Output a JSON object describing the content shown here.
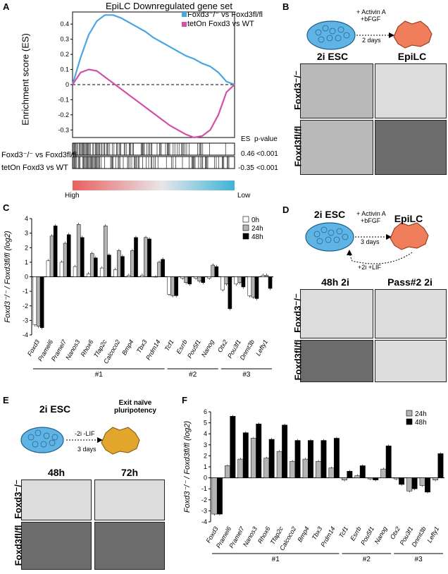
{
  "panels": [
    "A",
    "B",
    "C",
    "D",
    "E",
    "F"
  ],
  "panel_a": {
    "title": "EpiLC Downregulated gene set",
    "legend": [
      {
        "label": "Foxd3⁻/⁻ vs Foxd3fl/fl",
        "color": "#4aa6e0"
      },
      {
        "label": "tetOn Foxd3 vs WT",
        "color": "#d44fa6"
      }
    ],
    "ylabel": "Enrichment score (ES)",
    "yticks": [
      "0.4",
      "0.3",
      "0.2",
      "0.1",
      "0",
      "-0.1",
      "-0.2",
      "-0.3"
    ],
    "es_header": "ES",
    "pvalue_header": "p-value",
    "rows": [
      {
        "label": "Foxd3⁻/⁻ vs Foxd3fl/fl",
        "es": "0.46",
        "p": "<0.001"
      },
      {
        "label": "tetOn Foxd3 vs WT",
        "es": "-0.35",
        "p": "<0.001"
      }
    ],
    "high": "High",
    "low": "Low"
  },
  "panel_b": {
    "scheme_left": "2i ESC",
    "scheme_right": "EpiLC",
    "arrow_text": [
      "+ Activin A",
      "+bFGF",
      "2 days"
    ],
    "row_labels": [
      "Foxd3⁻/⁻",
      "Foxd3fl/fl"
    ]
  },
  "panel_d": {
    "scheme_left": "2i ESC",
    "scheme_right": "EpiLC",
    "arrow_text": [
      "+ Activin A",
      "+bFGF",
      "3 days"
    ],
    "back_text": "+2i +LIF",
    "col_labels": [
      "48h 2i",
      "Pass#2 2i"
    ],
    "row_labels": [
      "Foxd3⁻/⁻",
      "Foxd3fl/fl"
    ]
  },
  "panel_e": {
    "scheme_left": "2i ESC",
    "scheme_right": "Exit naïve pluripotency",
    "arrow_text": [
      "-2i -LIF",
      "3 days"
    ],
    "col_labels": [
      "48h",
      "72h"
    ],
    "row_labels": [
      "Foxd3⁻/⁻",
      "Foxd3fl/fl"
    ]
  },
  "chart_data": [
    {
      "panel": "A",
      "type": "line",
      "title": "EpiLC Downregulated gene set",
      "ylabel": "Enrichment score (ES)",
      "ylim": [
        -0.35,
        0.48
      ],
      "x": [
        0,
        0.05,
        0.1,
        0.15,
        0.2,
        0.25,
        0.3,
        0.35,
        0.4,
        0.45,
        0.5,
        0.55,
        0.6,
        0.65,
        0.7,
        0.75,
        0.8,
        0.85,
        0.9,
        0.95,
        1
      ],
      "series": [
        {
          "name": "Foxd3⁻/⁻ vs Foxd3fl/fl",
          "color": "#4aa6e0",
          "values": [
            0,
            0.18,
            0.33,
            0.42,
            0.46,
            0.46,
            0.44,
            0.41,
            0.38,
            0.35,
            0.31,
            0.28,
            0.25,
            0.22,
            0.19,
            0.17,
            0.14,
            0.12,
            0.08,
            0.02,
            0
          ]
        },
        {
          "name": "tetOn Foxd3 vs WT",
          "color": "#d44fa6",
          "values": [
            0,
            0.08,
            0.1,
            0.09,
            0.05,
            0.01,
            -0.03,
            -0.07,
            -0.11,
            -0.15,
            -0.19,
            -0.23,
            -0.27,
            -0.3,
            -0.33,
            -0.35,
            -0.34,
            -0.3,
            -0.2,
            -0.05,
            0
          ]
        }
      ]
    },
    {
      "panel": "C",
      "type": "bar",
      "ylabel": "Foxd3⁻/⁻ / Foxd3fl/fl (log2)",
      "ylim": [
        -4,
        4
      ],
      "yticks": [
        -4,
        -3,
        -2,
        -1,
        0,
        1,
        2,
        3,
        4
      ],
      "categories": [
        "Foxd3",
        "Pramel6",
        "Pramel7",
        "Nanos3",
        "Rhox6",
        "Tfap2c",
        "Calcoco2",
        "Bmp4",
        "Tbx3",
        "Prdm14",
        "Tcf1",
        "Esrrb",
        "Pou5f1",
        "Nanog",
        "Otx2",
        "Pou3f1",
        "Dnmt3b",
        "Lefty1"
      ],
      "series": [
        {
          "name": "0h",
          "color": "#ffffff",
          "values": [
            -3.3,
            1.1,
            1.0,
            0.7,
            0.2,
            0.6,
            0.5,
            0.1,
            0.1,
            0.0,
            -1.2,
            -0.1,
            -0.1,
            -0.1,
            -0.9,
            -0.5,
            -1.3,
            0.1
          ]
        },
        {
          "name": "24h",
          "color": "#b4b4b4",
          "values": [
            -3.4,
            2.8,
            2.3,
            3.6,
            1.6,
            3.5,
            1.8,
            1.8,
            2.7,
            1.0,
            -1.3,
            -0.4,
            -0.3,
            0.8,
            -0.5,
            -0.4,
            -1.4,
            0.1
          ]
        },
        {
          "name": "48h",
          "color": "#000000",
          "values": [
            -3.5,
            3.5,
            2.9,
            2.7,
            1.3,
            1.5,
            1.4,
            2.7,
            2.6,
            1.2,
            -1.3,
            -0.5,
            -0.4,
            0.7,
            -2.2,
            -0.7,
            -1.5,
            -0.8
          ]
        }
      ],
      "groups": [
        {
          "label": "#1",
          "from": 0,
          "to": 9
        },
        {
          "label": "#2",
          "from": 10,
          "to": 13
        },
        {
          "label": "#3",
          "from": 14,
          "to": 17
        }
      ]
    },
    {
      "panel": "F",
      "type": "bar",
      "ylabel": "Foxd3⁻/⁻ / Foxd3fl/fl (log2)",
      "ylim": [
        -4,
        6
      ],
      "yticks": [
        -4,
        -3,
        -2,
        -1,
        0,
        1,
        2,
        3,
        4,
        5,
        6
      ],
      "categories": [
        "Foxd3",
        "Pramel6",
        "Pramel7",
        "Nanos3",
        "Rhox6",
        "Tfap2c",
        "Calcoco2",
        "Bmp4",
        "Tbx3",
        "Prdm14",
        "Tcf1",
        "Esrrb",
        "Pou5f1",
        "Nanog",
        "Otx2",
        "Pou3f1",
        "Dnmt3b",
        "Lefty1"
      ],
      "series": [
        {
          "name": "24h",
          "color": "#b4b4b4",
          "values": [
            -3.3,
            1.1,
            1.7,
            3.6,
            1.8,
            2.4,
            1.5,
            1.7,
            1.5,
            0.9,
            -0.2,
            0.2,
            -0.1,
            0.8,
            -0.1,
            -1.2,
            -0.7,
            -0.2
          ]
        },
        {
          "name": "48h",
          "color": "#000000",
          "values": [
            -3.3,
            5.6,
            4.1,
            4.9,
            3.5,
            4.8,
            3.4,
            3.4,
            3.4,
            3.6,
            0.6,
            1.1,
            -0.2,
            2.9,
            -0.6,
            -1.0,
            -1.3,
            2.2
          ]
        }
      ],
      "groups": [
        {
          "label": "#1",
          "from": 0,
          "to": 9
        },
        {
          "label": "#2",
          "from": 10,
          "to": 13
        },
        {
          "label": "#3",
          "from": 14,
          "to": 17
        }
      ]
    }
  ]
}
